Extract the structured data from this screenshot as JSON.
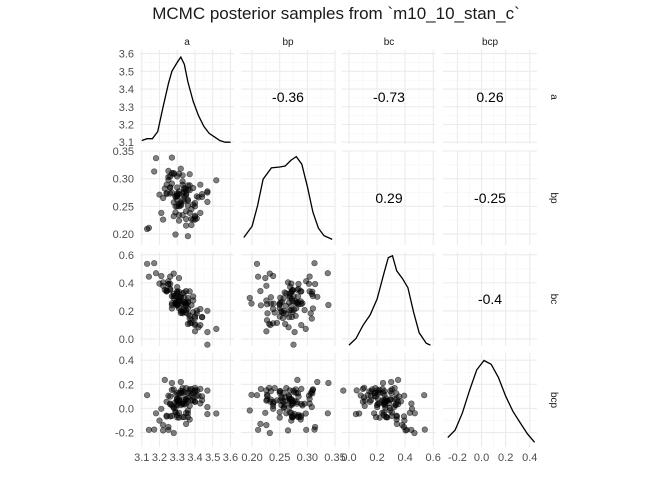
{
  "chart_data": {
    "type": "scatter",
    "title": "MCMC posterior samples from `m10_10_stan_c`",
    "variables": [
      "a",
      "bp",
      "bc",
      "bcp"
    ],
    "ranges": {
      "a": [
        3.09,
        3.62
      ],
      "bp": [
        0.18,
        0.35
      ],
      "bc": [
        -0.05,
        0.62
      ],
      "bcp": [
        -0.32,
        0.46
      ]
    },
    "ticks": {
      "a": {
        "y_values": [
          3.1,
          3.2,
          3.3,
          3.4,
          3.5,
          3.6
        ],
        "y_labels": [
          "3.1",
          "3.2",
          "3.3",
          "3.4",
          "3.5",
          "3.6"
        ],
        "x_values": [
          3.1,
          3.2,
          3.3,
          3.4,
          3.5,
          3.6
        ],
        "x_labels": [
          "3.1",
          "3.2",
          "3.3",
          "3.4",
          "3.5",
          "3.6"
        ]
      },
      "bp": {
        "values": [
          0.2,
          0.25,
          0.3,
          0.35
        ],
        "y_labels": [
          "0.20",
          "0.25",
          "0.30",
          "0.35"
        ],
        "x_labels": [
          "0.20",
          "0.25",
          "0.30",
          "0.35"
        ]
      },
      "bc": {
        "values": [
          0.0,
          0.2,
          0.4,
          0.6
        ],
        "y_labels": [
          "0.0",
          "0.2",
          "0.4",
          "0.6"
        ],
        "x_labels": [
          "0.0",
          "0.2",
          "0.4",
          "0.6"
        ]
      },
      "bcp": {
        "values": [
          -0.2,
          0.0,
          0.2,
          0.4
        ],
        "y_labels": [
          "-0.2",
          "0.0",
          "0.2",
          "0.4"
        ],
        "x_labels": [
          "-0.2",
          "0.0",
          "0.2",
          "0.4"
        ]
      }
    },
    "correlations": [
      {
        "row": "a",
        "col": "bp",
        "label": "-0.36"
      },
      {
        "row": "a",
        "col": "bc",
        "label": "-0.73"
      },
      {
        "row": "a",
        "col": "bcp",
        "label": "0.26"
      },
      {
        "row": "bp",
        "col": "bc",
        "label": "0.29"
      },
      {
        "row": "bp",
        "col": "bcp",
        "label": "-0.25"
      },
      {
        "row": "bc",
        "col": "bcp",
        "label": "-0.4"
      }
    ],
    "densities": {
      "a": [
        [
          3.1,
          3.11
        ],
        [
          3.13,
          3.12
        ],
        [
          3.16,
          3.12
        ],
        [
          3.19,
          3.16
        ],
        [
          3.22,
          3.3
        ],
        [
          3.25,
          3.43
        ],
        [
          3.27,
          3.5
        ],
        [
          3.3,
          3.55
        ],
        [
          3.32,
          3.58
        ],
        [
          3.34,
          3.54
        ],
        [
          3.36,
          3.44
        ],
        [
          3.39,
          3.33
        ],
        [
          3.42,
          3.25
        ],
        [
          3.45,
          3.19
        ],
        [
          3.48,
          3.15
        ],
        [
          3.51,
          3.13
        ],
        [
          3.54,
          3.11
        ],
        [
          3.57,
          3.1
        ],
        [
          3.6,
          3.1
        ]
      ],
      "bp": [
        [
          0.185,
          0.08
        ],
        [
          0.2,
          0.2
        ],
        [
          0.21,
          0.42
        ],
        [
          0.22,
          0.7
        ],
        [
          0.235,
          0.82
        ],
        [
          0.25,
          0.83
        ],
        [
          0.26,
          0.84
        ],
        [
          0.27,
          0.9
        ],
        [
          0.28,
          0.94
        ],
        [
          0.29,
          0.86
        ],
        [
          0.3,
          0.62
        ],
        [
          0.31,
          0.35
        ],
        [
          0.32,
          0.18
        ],
        [
          0.33,
          0.1
        ],
        [
          0.345,
          0.06
        ]
      ],
      "bc": [
        [
          0.0,
          0.01
        ],
        [
          0.05,
          0.08
        ],
        [
          0.1,
          0.22
        ],
        [
          0.15,
          0.33
        ],
        [
          0.2,
          0.5
        ],
        [
          0.25,
          0.78
        ],
        [
          0.28,
          0.94
        ],
        [
          0.31,
          0.96
        ],
        [
          0.34,
          0.8
        ],
        [
          0.38,
          0.72
        ],
        [
          0.42,
          0.62
        ],
        [
          0.46,
          0.36
        ],
        [
          0.5,
          0.14
        ],
        [
          0.55,
          0.03
        ],
        [
          0.58,
          0.01
        ]
      ],
      "bcp": [
        [
          -0.28,
          0.1
        ],
        [
          -0.22,
          0.18
        ],
        [
          -0.16,
          0.36
        ],
        [
          -0.1,
          0.6
        ],
        [
          -0.04,
          0.82
        ],
        [
          0.02,
          0.92
        ],
        [
          0.08,
          0.88
        ],
        [
          0.14,
          0.74
        ],
        [
          0.2,
          0.54
        ],
        [
          0.26,
          0.38
        ],
        [
          0.32,
          0.26
        ],
        [
          0.38,
          0.14
        ],
        [
          0.44,
          0.05
        ]
      ]
    },
    "samples": {
      "a": [
        3.13,
        3.24,
        3.26,
        3.27,
        3.28,
        3.21,
        3.3,
        3.3,
        3.28,
        3.33,
        3.34,
        3.29,
        3.25,
        3.23,
        3.3,
        3.36,
        3.31,
        3.35,
        3.2,
        3.4,
        3.35,
        3.31,
        3.14,
        3.25,
        3.31,
        3.37,
        3.42,
        3.25,
        3.35,
        3.34,
        3.28,
        3.32,
        3.3,
        3.24,
        3.27,
        3.37,
        3.29,
        3.3,
        3.33,
        3.4,
        3.37,
        3.26,
        3.43,
        3.33,
        3.38,
        3.27,
        3.33,
        3.22,
        3.3,
        3.34,
        3.29,
        3.26,
        3.35,
        3.38,
        3.31,
        3.47,
        3.47,
        3.41,
        3.36,
        3.36,
        3.24,
        3.43,
        3.38,
        3.34,
        3.29,
        3.31,
        3.35,
        3.32,
        3.36,
        3.4,
        3.44,
        3.28,
        3.35,
        3.4,
        3.39,
        3.37,
        3.36,
        3.32,
        3.17,
        3.33,
        3.31,
        3.32,
        3.27,
        3.39,
        3.3,
        3.39,
        3.47,
        3.52,
        3.33,
        3.18,
        3.41,
        3.29,
        3.36,
        3.34,
        3.4,
        3.3,
        3.26,
        3.44,
        3.22,
        3.31
      ],
      "bp": [
        0.209,
        0.289,
        0.284,
        0.338,
        0.31,
        0.238,
        0.273,
        0.304,
        0.232,
        0.306,
        0.276,
        0.268,
        0.298,
        0.282,
        0.284,
        0.28,
        0.224,
        0.241,
        0.271,
        0.25,
        0.215,
        0.254,
        0.211,
        0.314,
        0.277,
        0.288,
        0.266,
        0.303,
        0.271,
        0.259,
        0.308,
        0.318,
        0.261,
        0.272,
        0.31,
        0.238,
        0.267,
        0.271,
        0.289,
        0.256,
        0.279,
        0.273,
        0.289,
        0.295,
        0.227,
        0.291,
        0.234,
        0.265,
        0.269,
        0.283,
        0.25,
        0.284,
        0.227,
        0.245,
        0.309,
        0.277,
        0.275,
        0.268,
        0.288,
        0.196,
        0.274,
        0.238,
        0.216,
        0.268,
        0.199,
        0.25,
        0.271,
        0.251,
        0.262,
        0.226,
        0.272,
        0.257,
        0.281,
        0.233,
        0.283,
        0.308,
        0.26,
        0.257,
        0.313,
        0.262,
        0.234,
        0.253,
        0.275,
        0.226,
        0.25,
        0.253,
        0.258,
        0.297,
        0.273,
        0.337,
        0.228,
        0.239,
        0.251,
        0.281,
        0.231,
        0.268,
        0.304,
        0.267,
        0.226,
        0.272
      ],
      "bc": [
        0.536,
        0.339,
        0.392,
        0.242,
        0.306,
        0.449,
        0.272,
        0.339,
        0.466,
        0.183,
        0.208,
        0.307,
        0.412,
        0.35,
        0.247,
        0.219,
        0.434,
        0.188,
        0.395,
        0.16,
        0.341,
        0.264,
        0.444,
        0.391,
        0.27,
        0.339,
        0.083,
        0.393,
        0.206,
        0.331,
        0.321,
        0.301,
        0.237,
        0.341,
        0.217,
        0.112,
        0.259,
        0.333,
        0.249,
        0.149,
        0.165,
        0.349,
        0.099,
        0.206,
        0.134,
        0.255,
        0.252,
        0.403,
        0.37,
        0.263,
        0.251,
        0.357,
        0.247,
        0.115,
        0.337,
        0.049,
        -0.041,
        0.202,
        0.268,
        0.292,
        0.348,
        0.214,
        0.24,
        0.295,
        0.253,
        0.219,
        0.237,
        0.294,
        0.179,
        0.055,
        0.157,
        0.29,
        0.254,
        0.099,
        0.303,
        0.145,
        0.107,
        0.185,
        0.54,
        0.325,
        0.298,
        0.2,
        0.305,
        0.274,
        0.243,
        0.191,
        0.201,
        0.072,
        0.192,
        0.469,
        0.183,
        0.252,
        0.259,
        0.261,
        0.108,
        0.324,
        0.445,
        0.155,
        0.379,
        0.286
      ],
      "bcp": [
        0.11,
        -0.06,
        -0.066,
        0.211,
        0.159,
        -0.003,
        -0.074,
        0.078,
        -0.204,
        0.126,
        0.134,
        -0.034,
        -0.177,
        0.237,
        -0.054,
        0.129,
        -0.036,
        0.169,
        -0.101,
        0.142,
        -0.128,
        0.084,
        -0.177,
        -0.154,
        0.062,
        -0.092,
        0.107,
        0.106,
        0.08,
        0.033,
        0.012,
        0.219,
        0.062,
        -0.067,
        0.154,
        0.021,
        0.006,
        0.028,
        0.037,
        0.055,
        0.158,
        0.034,
        0.162,
        0.039,
        0.111,
        0.025,
        0.143,
        -0.182,
        0.058,
        -0.072,
        -0.031,
        0.098,
        0.073,
        0.067,
        0.125,
        -0.047,
        0.148,
        0.15,
        -0.072,
        -0.017,
        0.056,
        0.042,
        0.161,
        0.075,
        0.113,
        -0.076,
        -0.036,
        0.145,
        -0.04,
        0.15,
        0.068,
        0.004,
        0.039,
        0.056,
        0.126,
        0.141,
        0.092,
        0.128,
        -0.176,
        0.169,
        0.073,
        0.028,
        -0.062,
        0.065,
        0.13,
        0.097,
        0.011,
        -0.042,
        -0.072,
        -0.04,
        0.103,
        0.053,
        0.064,
        0.053,
        0.171,
        0.078,
        0.04,
        0.101,
        -0.138,
        0.045
      ]
    }
  }
}
